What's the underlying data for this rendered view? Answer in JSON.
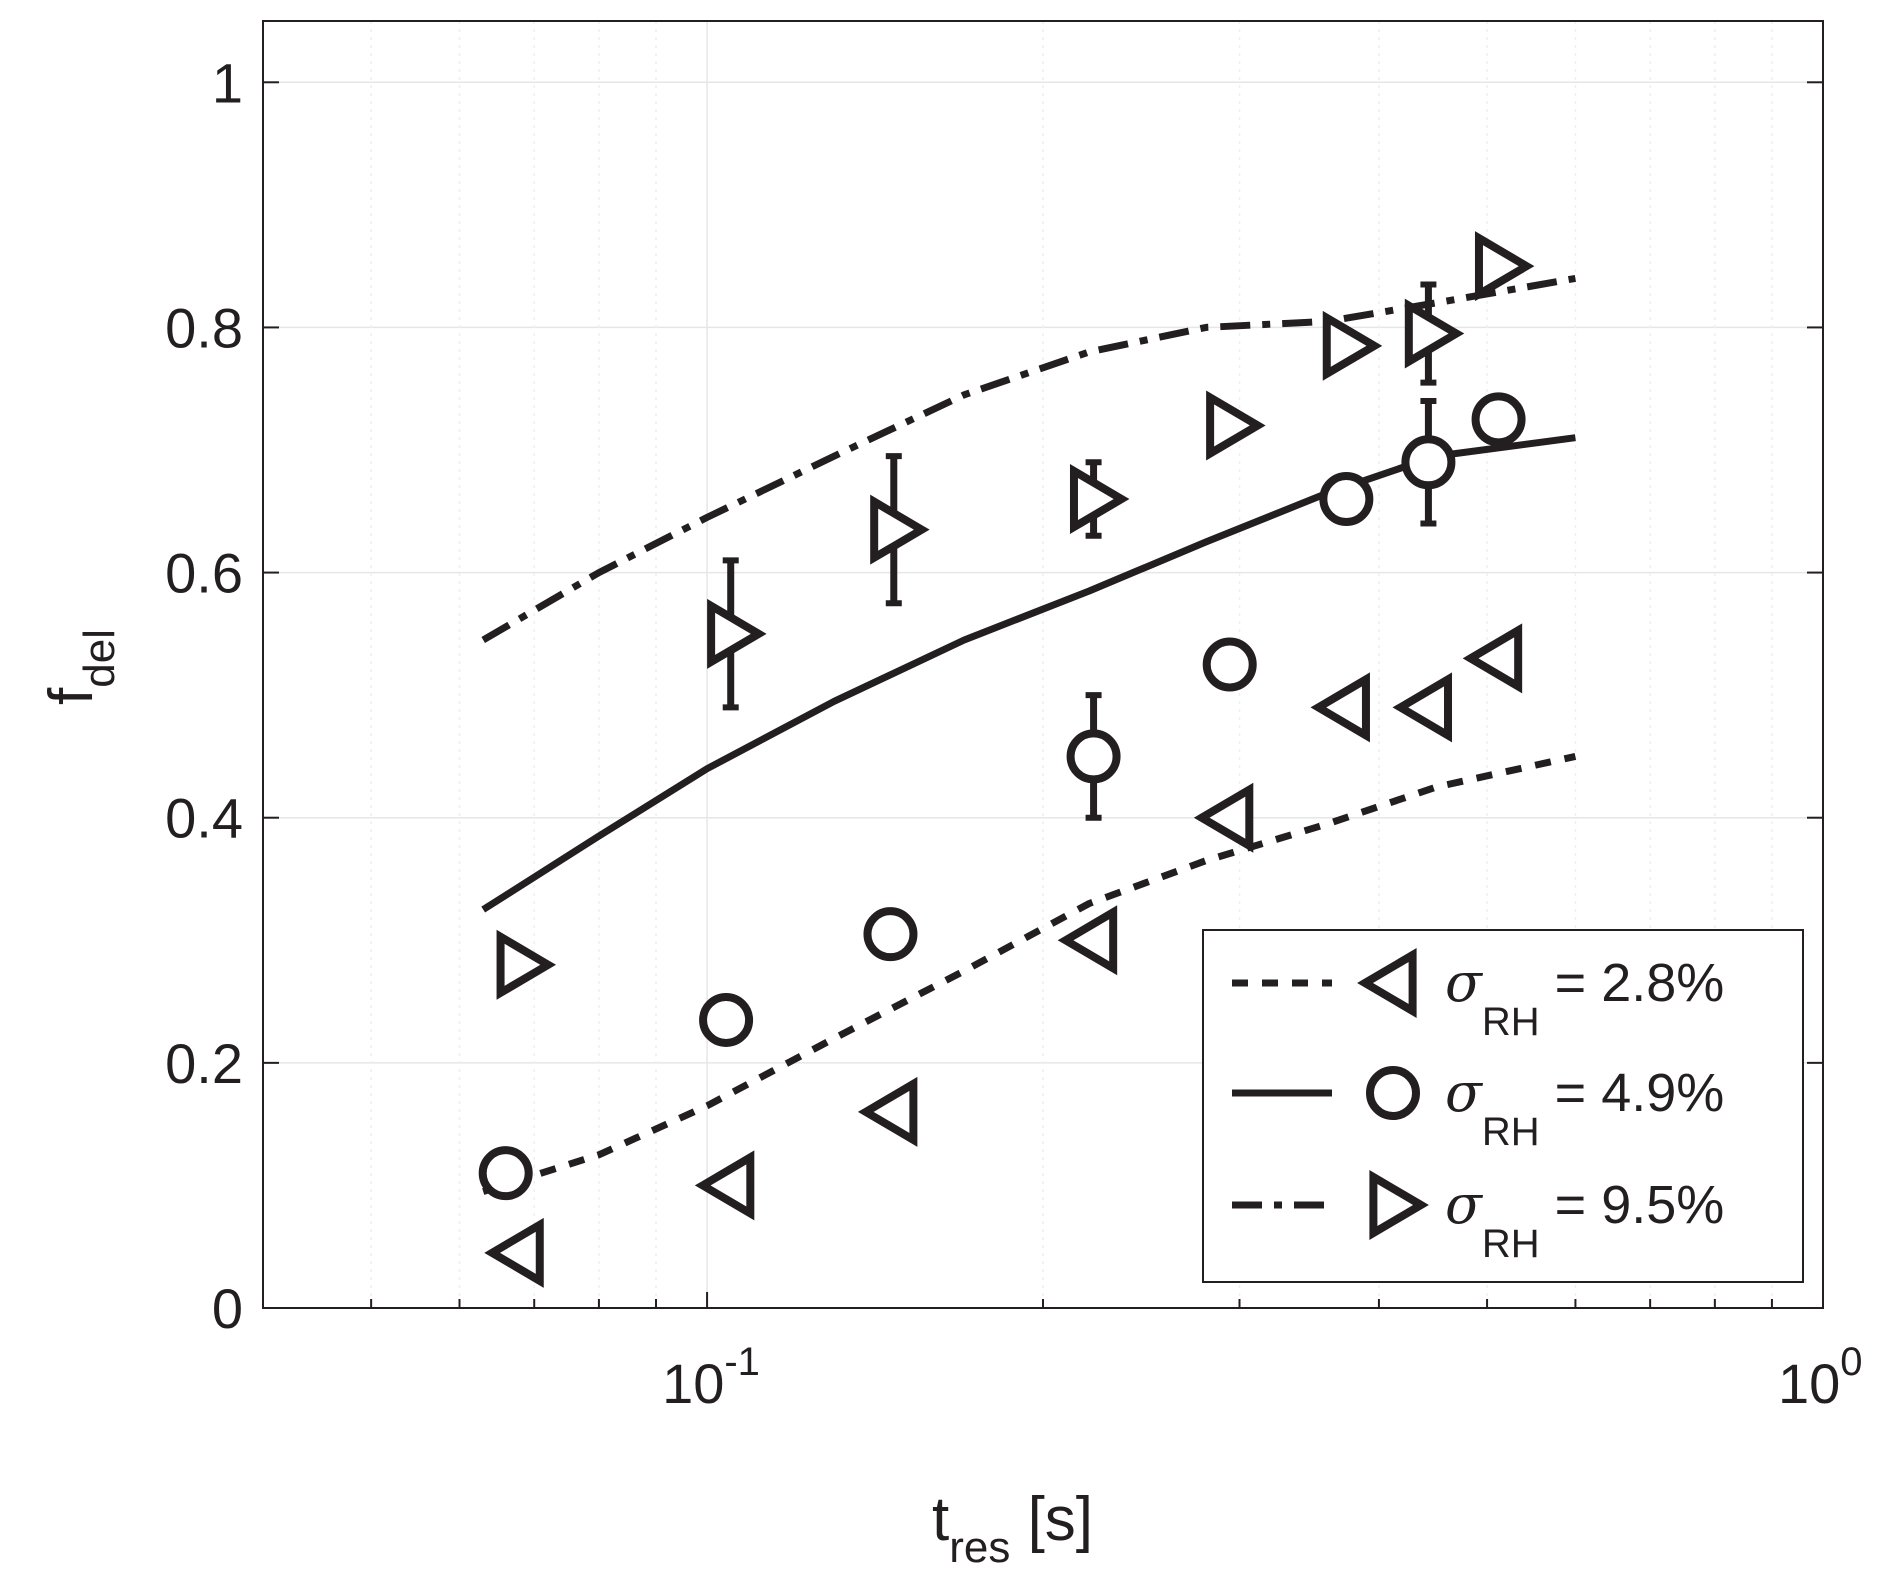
{
  "chart_data": {
    "type": "scatter",
    "xscale": "log",
    "xlim": [
      0.04,
      1.0
    ],
    "ylim": [
      0,
      1.05
    ],
    "xticks": [
      {
        "value": 0.1,
        "base": "10",
        "exp": "-1"
      },
      {
        "value": 1.0,
        "base": "10",
        "exp": "0"
      }
    ],
    "yticks": [
      {
        "value": 0,
        "label": "0"
      },
      {
        "value": 0.2,
        "label": "0.2"
      },
      {
        "value": 0.4,
        "label": "0.4"
      },
      {
        "value": 0.6,
        "label": "0.6"
      },
      {
        "value": 0.8,
        "label": "0.8"
      },
      {
        "value": 1.0,
        "label": "1"
      }
    ],
    "xlabel": {
      "main": "t",
      "sub": "res",
      "unit": " [s]"
    },
    "ylabel": {
      "main": "f",
      "sub": "del"
    },
    "grid": true,
    "legend_position": "bottom-right",
    "series": [
      {
        "label_symbol": "σ",
        "label_sub": "RH",
        "label_value": " = 2.8%",
        "marker": "triangle-left",
        "line_style": "dotted",
        "color": "#231f20",
        "points": [
          {
            "x": 0.068,
            "y": 0.045
          },
          {
            "x": 0.105,
            "y": 0.1
          },
          {
            "x": 0.147,
            "y": 0.16
          },
          {
            "x": 0.222,
            "y": 0.3
          },
          {
            "x": 0.294,
            "y": 0.4
          },
          {
            "x": 0.374,
            "y": 0.49
          },
          {
            "x": 0.443,
            "y": 0.49
          },
          {
            "x": 0.512,
            "y": 0.53
          }
        ],
        "fit": [
          {
            "x": 0.063,
            "y": 0.095
          },
          {
            "x": 0.08,
            "y": 0.125
          },
          {
            "x": 0.1,
            "y": 0.165
          },
          {
            "x": 0.13,
            "y": 0.22
          },
          {
            "x": 0.17,
            "y": 0.275
          },
          {
            "x": 0.22,
            "y": 0.33
          },
          {
            "x": 0.28,
            "y": 0.365
          },
          {
            "x": 0.36,
            "y": 0.395
          },
          {
            "x": 0.45,
            "y": 0.425
          },
          {
            "x": 0.6,
            "y": 0.45
          }
        ]
      },
      {
        "label_symbol": "σ",
        "label_sub": "RH",
        "label_value": " = 4.9%",
        "marker": "circle",
        "line_style": "solid",
        "color": "#231f20",
        "points": [
          {
            "x": 0.066,
            "y": 0.11
          },
          {
            "x": 0.104,
            "y": 0.235
          },
          {
            "x": 0.146,
            "y": 0.305
          },
          {
            "x": 0.222,
            "y": 0.45,
            "err": 0.05
          },
          {
            "x": 0.294,
            "y": 0.525
          },
          {
            "x": 0.374,
            "y": 0.66
          },
          {
            "x": 0.443,
            "y": 0.69,
            "err": 0.05
          },
          {
            "x": 0.512,
            "y": 0.725
          }
        ],
        "fit": [
          {
            "x": 0.063,
            "y": 0.325
          },
          {
            "x": 0.08,
            "y": 0.385
          },
          {
            "x": 0.1,
            "y": 0.44
          },
          {
            "x": 0.13,
            "y": 0.495
          },
          {
            "x": 0.17,
            "y": 0.545
          },
          {
            "x": 0.22,
            "y": 0.585
          },
          {
            "x": 0.28,
            "y": 0.625
          },
          {
            "x": 0.36,
            "y": 0.665
          },
          {
            "x": 0.45,
            "y": 0.695
          },
          {
            "x": 0.6,
            "y": 0.71
          }
        ]
      },
      {
        "label_symbol": "σ",
        "label_sub": "RH",
        "label_value": " = 9.5%",
        "marker": "triangle-right",
        "line_style": "dashdot",
        "color": "#231f20",
        "points": [
          {
            "x": 0.068,
            "y": 0.28
          },
          {
            "x": 0.105,
            "y": 0.55,
            "err": 0.06
          },
          {
            "x": 0.147,
            "y": 0.635,
            "err": 0.06
          },
          {
            "x": 0.222,
            "y": 0.66,
            "err": 0.03
          },
          {
            "x": 0.294,
            "y": 0.72
          },
          {
            "x": 0.374,
            "y": 0.785
          },
          {
            "x": 0.443,
            "y": 0.795,
            "err": 0.04
          },
          {
            "x": 0.512,
            "y": 0.85
          }
        ],
        "fit": [
          {
            "x": 0.063,
            "y": 0.545
          },
          {
            "x": 0.08,
            "y": 0.6
          },
          {
            "x": 0.1,
            "y": 0.645
          },
          {
            "x": 0.13,
            "y": 0.695
          },
          {
            "x": 0.17,
            "y": 0.745
          },
          {
            "x": 0.22,
            "y": 0.78
          },
          {
            "x": 0.28,
            "y": 0.8
          },
          {
            "x": 0.36,
            "y": 0.805
          },
          {
            "x": 0.45,
            "y": 0.82
          },
          {
            "x": 0.6,
            "y": 0.84
          }
        ]
      }
    ]
  }
}
